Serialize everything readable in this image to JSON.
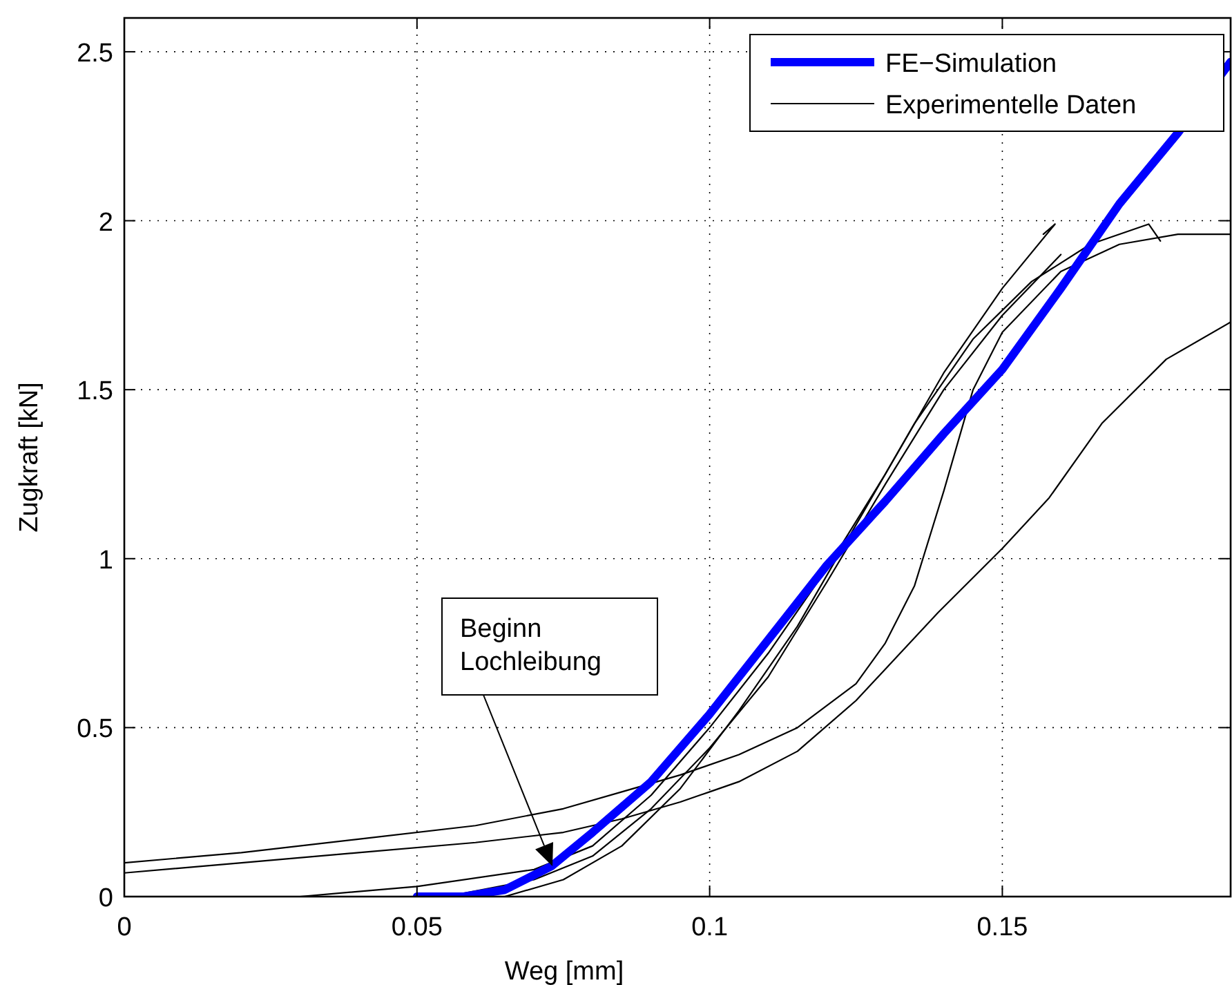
{
  "chart_data": {
    "type": "line",
    "xlabel": "Weg [mm]",
    "ylabel": "Zugkraft [kN]",
    "xlim": [
      0,
      0.189
    ],
    "ylim": [
      0,
      2.6
    ],
    "xticks": [
      0,
      0.05,
      0.1,
      0.15
    ],
    "yticks": [
      0,
      0.5,
      1,
      1.5,
      2,
      2.5
    ],
    "grid": true,
    "legend": "top right",
    "line_style": "solid",
    "series": [
      {
        "name": "FE−Simulation",
        "color": "#0000ff",
        "x": [
          0.05,
          0.058,
          0.065,
          0.073,
          0.08,
          0.09,
          0.1,
          0.11,
          0.12,
          0.13,
          0.14,
          0.15,
          0.16,
          0.17,
          0.18,
          0.189
        ],
        "values": [
          0,
          0,
          0.02,
          0.09,
          0.19,
          0.34,
          0.54,
          0.76,
          0.98,
          1.17,
          1.37,
          1.56,
          1.8,
          2.05,
          2.26,
          2.47
        ]
      },
      {
        "name": "Experimentelle Daten",
        "color": "#000000",
        "x": [
          0,
          0.02,
          0.04,
          0.06,
          0.075,
          0.085,
          0.095,
          0.105,
          0.115,
          0.125,
          0.13,
          0.135,
          0.14,
          0.145,
          0.15,
          0.16,
          0.17,
          0.18,
          0.189
        ],
        "values": [
          0.1,
          0.13,
          0.17,
          0.21,
          0.26,
          0.31,
          0.36,
          0.42,
          0.5,
          0.63,
          0.75,
          0.92,
          1.2,
          1.5,
          1.67,
          1.85,
          1.93,
          1.96,
          1.96
        ]
      },
      {
        "color": "#000000",
        "x": [
          0,
          0.02,
          0.04,
          0.06,
          0.075,
          0.085,
          0.095,
          0.1,
          0.105,
          0.115,
          0.125,
          0.139,
          0.15,
          0.158,
          0.167,
          0.178,
          0.189
        ],
        "values": [
          0.07,
          0.1,
          0.13,
          0.16,
          0.19,
          0.23,
          0.28,
          0.31,
          0.34,
          0.43,
          0.58,
          0.84,
          1.03,
          1.18,
          1.4,
          1.59,
          1.7
        ]
      },
      {
        "color": "#000000",
        "x": [
          0.03,
          0.05,
          0.07,
          0.08,
          0.09,
          0.1,
          0.11,
          0.12,
          0.13,
          0.14,
          0.15,
          0.159,
          0.157
        ],
        "values": [
          0,
          0.03,
          0.08,
          0.15,
          0.3,
          0.5,
          0.72,
          0.97,
          1.25,
          1.55,
          1.8,
          1.99,
          1.96
        ]
      },
      {
        "color": "#000000",
        "x": [
          0.065,
          0.075,
          0.085,
          0.095,
          0.105,
          0.115,
          0.125,
          0.135,
          0.145,
          0.155,
          0.165,
          0.175,
          0.177
        ],
        "values": [
          0,
          0.05,
          0.15,
          0.32,
          0.55,
          0.8,
          1.1,
          1.4,
          1.65,
          1.82,
          1.93,
          1.99,
          1.94
        ]
      },
      {
        "color": "#000000",
        "x": [
          0.055,
          0.07,
          0.08,
          0.09,
          0.1,
          0.11,
          0.12,
          0.13,
          0.14,
          0.15,
          0.16
        ],
        "values": [
          0,
          0.05,
          0.12,
          0.26,
          0.44,
          0.65,
          0.93,
          1.22,
          1.5,
          1.72,
          1.9
        ]
      }
    ],
    "annotations": [
      "Beginn\nLochleibung"
    ]
  }
}
